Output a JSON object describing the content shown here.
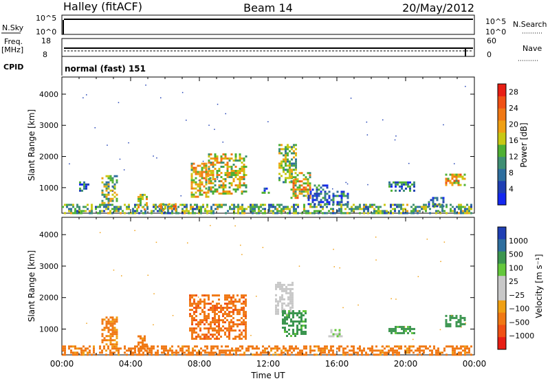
{
  "header": {
    "station": "Halley (fitACF)",
    "beam": "Beam 14",
    "date": "20/May/2012"
  },
  "strips": {
    "nsky_label": "N.Sky",
    "nsky_ticks": [
      "10^5",
      "10^0"
    ],
    "nsearch_label": "N.Search",
    "nsearch_ticks": [
      "10^5",
      "10^0"
    ],
    "freq_label": "Freq.",
    "freq_unit": "[MHz]",
    "freq_ticks": [
      "18",
      "8"
    ],
    "nave_label": "Nave",
    "nave_ticks": [
      "60",
      "0"
    ],
    "cpid_label": "CPID",
    "cpid_value": "normal (fast) 151"
  },
  "colors": {
    "power_scale": [
      "#1428f0",
      "#1f3fb4",
      "#2e6e9e",
      "#3f8f74",
      "#4fb034",
      "#c8c814",
      "#f0a014",
      "#f07814",
      "#f05014",
      "#e81e14"
    ],
    "velocity_scale": [
      "#e81e14",
      "#f05014",
      "#f07814",
      "#f0a014",
      "#c8c8c8",
      "#c8c8c8",
      "#64c83c",
      "#3c9650",
      "#2e6e9e",
      "#1f3fb4"
    ]
  },
  "chart_data": [
    {
      "type": "heatmap",
      "name": "power",
      "ylabel": "Slant Range [km]",
      "xlabel": "Time UT",
      "xlim_hours": [
        0,
        24
      ],
      "ylim_km": [
        180,
        4550
      ],
      "x_ticks": [
        "00:00",
        "04:00",
        "08:00",
        "12:00",
        "16:00",
        "20:00",
        "00:00"
      ],
      "y_ticks": [
        1000,
        2000,
        3000,
        4000
      ],
      "colorbar_label": "Power [dB]",
      "colorbar_ticks": [
        "4",
        "8",
        "12",
        "16",
        "20",
        "24",
        "28"
      ],
      "colorbar_range": [
        0,
        30
      ],
      "echo_regions": [
        {
          "t0": 0.0,
          "t1": 23.8,
          "r0": 200,
          "r1": 480,
          "level": 12
        },
        {
          "t0": 1.0,
          "t1": 1.6,
          "r0": 900,
          "r1": 1200,
          "level": 8
        },
        {
          "t0": 2.3,
          "t1": 3.2,
          "r0": 500,
          "r1": 1400,
          "level": 14
        },
        {
          "t0": 4.4,
          "t1": 5.0,
          "r0": 300,
          "r1": 800,
          "level": 18
        },
        {
          "t0": 5.6,
          "t1": 6.8,
          "r0": 300,
          "r1": 500,
          "level": 20
        },
        {
          "t0": 7.5,
          "t1": 8.7,
          "r0": 700,
          "r1": 1800,
          "level": 18
        },
        {
          "t0": 8.5,
          "t1": 10.7,
          "r0": 800,
          "r1": 2100,
          "level": 16
        },
        {
          "t0": 11.5,
          "t1": 12.0,
          "r0": 850,
          "r1": 1000,
          "level": 8
        },
        {
          "t0": 12.6,
          "t1": 13.6,
          "r0": 1200,
          "r1": 2400,
          "level": 14
        },
        {
          "t0": 13.3,
          "t1": 14.4,
          "r0": 700,
          "r1": 1500,
          "level": 18
        },
        {
          "t0": 14.3,
          "t1": 15.5,
          "r0": 450,
          "r1": 1100,
          "level": 6
        },
        {
          "t0": 15.5,
          "t1": 16.6,
          "r0": 500,
          "r1": 900,
          "level": 6
        },
        {
          "t0": 19.0,
          "t1": 20.5,
          "r0": 900,
          "r1": 1200,
          "level": 8
        },
        {
          "t0": 21.3,
          "t1": 22.2,
          "r0": 400,
          "r1": 700,
          "level": 6
        },
        {
          "t0": 22.3,
          "t1": 23.4,
          "r0": 1100,
          "r1": 1450,
          "level": 18
        }
      ]
    },
    {
      "type": "heatmap",
      "name": "velocity",
      "ylabel": "Slant Range [km]",
      "xlabel": "Time UT",
      "xlim_hours": [
        0,
        24
      ],
      "ylim_km": [
        180,
        4550
      ],
      "x_ticks": [
        "00:00",
        "04:00",
        "08:00",
        "12:00",
        "16:00",
        "20:00",
        "00:00"
      ],
      "y_ticks": [
        1000,
        2000,
        3000,
        4000
      ],
      "colorbar_label": "Velocity [m s⁻¹]",
      "colorbar_ticks": [
        "1000",
        "500",
        "100",
        "25",
        "−25",
        "−100",
        "−500",
        "−1000"
      ],
      "echo_regions": [
        {
          "t0": 0.0,
          "t1": 23.8,
          "r0": 200,
          "r1": 480,
          "vel": -150
        },
        {
          "t0": 2.3,
          "t1": 3.2,
          "r0": 500,
          "r1": 1400,
          "vel": -120
        },
        {
          "t0": 4.4,
          "t1": 5.0,
          "r0": 300,
          "r1": 800,
          "vel": -150
        },
        {
          "t0": 7.4,
          "t1": 10.7,
          "r0": 700,
          "r1": 2100,
          "vel": -400
        },
        {
          "t0": 12.4,
          "t1": 13.4,
          "r0": 1500,
          "r1": 2500,
          "vel": 10
        },
        {
          "t0": 12.8,
          "t1": 14.2,
          "r0": 800,
          "r1": 1600,
          "vel": 150
        },
        {
          "t0": 15.5,
          "t1": 16.3,
          "r0": 800,
          "r1": 1000,
          "vel": 20
        },
        {
          "t0": 19.0,
          "t1": 20.5,
          "r0": 900,
          "r1": 1100,
          "vel": 150
        },
        {
          "t0": 22.3,
          "t1": 23.4,
          "r0": 1100,
          "r1": 1450,
          "vel": 250
        }
      ]
    }
  ]
}
